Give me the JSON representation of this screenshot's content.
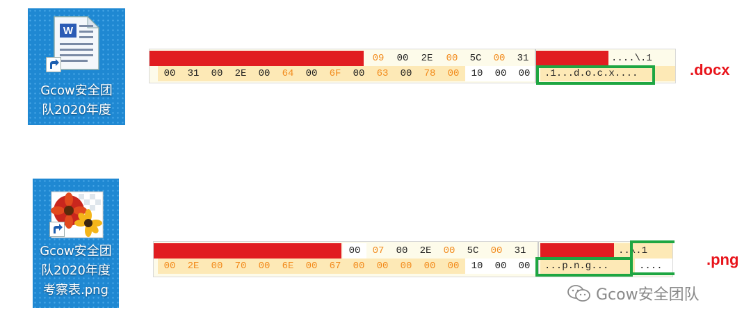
{
  "icons": {
    "docx_label": [
      "Gcow安全团",
      "队2020年度"
    ],
    "png_label": [
      "Gcow安全团",
      "队2020年度",
      "考察表.png"
    ]
  },
  "hex_docx": {
    "row1": [
      "09",
      "00",
      "2E",
      "00",
      "5C",
      "00",
      "31"
    ],
    "row1_ascii": "....\\.1",
    "row2": [
      "00",
      "31",
      "00",
      "2E",
      "00",
      "64",
      "00",
      "6F",
      "00",
      "63",
      "00",
      "78",
      "00",
      "10",
      "00",
      "00"
    ],
    "row2_ascii": ".1...d.o.c.x...."
  },
  "hex_png": {
    "row1": [
      "00",
      "07",
      "00",
      "2E",
      "00",
      "5C",
      "00",
      "31"
    ],
    "row1_ascii": "..\\.1",
    "row2": [
      "00",
      "2E",
      "00",
      "70",
      "00",
      "6E",
      "00",
      "67",
      "00",
      "00",
      "00",
      "00",
      "00",
      "10",
      "00",
      "00"
    ],
    "row2_ascii": "...p.n.g.......",
    "row2_ascii_green": "...p.n.g...",
    "row2_ascii_rest": "...."
  },
  "ext_labels": {
    "docx": ".docx",
    "png": ".png"
  },
  "watermark": "Gcow安全团队",
  "colors": {
    "icon_bg": "#1f88d2",
    "red_highlight": "#e11d21",
    "tan_highlight": "#fde9b6",
    "orange_text": "#f28a1b",
    "green_box": "#1ea642",
    "label_red": "#e8141b"
  }
}
